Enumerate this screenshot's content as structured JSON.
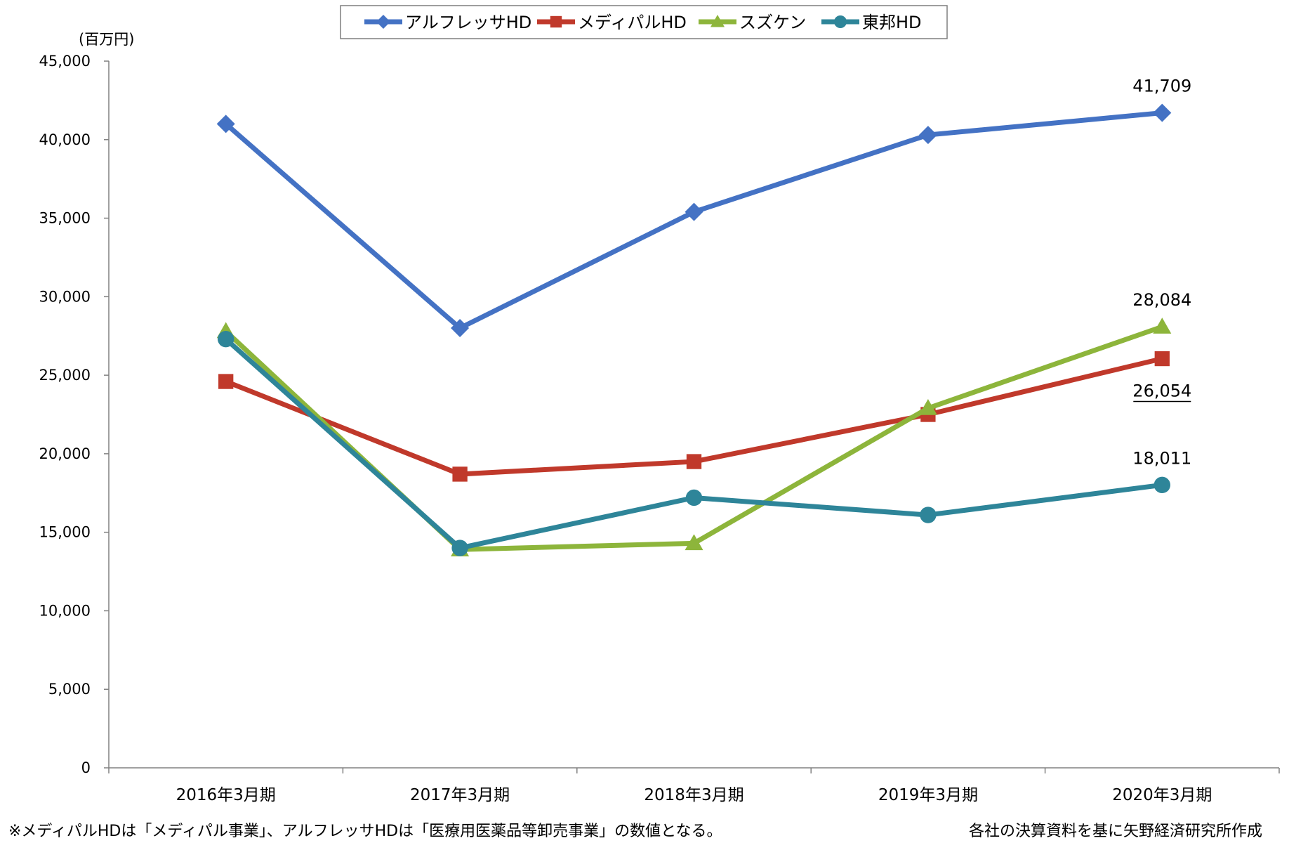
{
  "chart_data": {
    "type": "line",
    "unit": "(百万円)",
    "categories": [
      "2016年3月期",
      "2017年3月期",
      "2018年3月期",
      "2019年3月期",
      "2020年3月期"
    ],
    "ylim": [
      0,
      45000
    ],
    "yticks": [
      0,
      5000,
      10000,
      15000,
      20000,
      25000,
      30000,
      35000,
      40000,
      45000
    ],
    "ytick_labels": [
      "0",
      "5,000",
      "10,000",
      "15,000",
      "20,000",
      "25,000",
      "30,000",
      "35,000",
      "40,000",
      "45,000"
    ],
    "grid": false,
    "legend_position": "top",
    "series": [
      {
        "name": "アルフレッサHD",
        "marker": "diamond",
        "color": "#4472C4",
        "values": [
          41000,
          28000,
          35400,
          40300,
          41709
        ]
      },
      {
        "name": "メディパルHD",
        "marker": "square",
        "color": "#C0392B",
        "values": [
          24600,
          18700,
          19500,
          22500,
          26054
        ]
      },
      {
        "name": "スズケン",
        "marker": "triangle",
        "color": "#8DB53B",
        "values": [
          27800,
          13900,
          14300,
          22900,
          28084
        ]
      },
      {
        "name": "東邦HD",
        "marker": "circle",
        "color": "#2E8599",
        "values": [
          27300,
          14000,
          17200,
          16100,
          18011
        ]
      }
    ],
    "annotations": [
      {
        "series": 0,
        "point": 4,
        "text": "41,709",
        "position": "above",
        "underline": false
      },
      {
        "series": 2,
        "point": 4,
        "text": "28,084",
        "position": "above",
        "underline": false
      },
      {
        "series": 1,
        "point": 4,
        "text": "26,054",
        "position": "below",
        "underline": true
      },
      {
        "series": 3,
        "point": 4,
        "text": "18,011",
        "position": "above",
        "underline": false
      }
    ]
  },
  "notes": {
    "left": "※メディパルHDは「メディパル事業」、アルフレッサHDは「医療用医薬品等卸売事業」の数値となる。",
    "right": "各社の決算資料を基に矢野経済研究所作成"
  }
}
